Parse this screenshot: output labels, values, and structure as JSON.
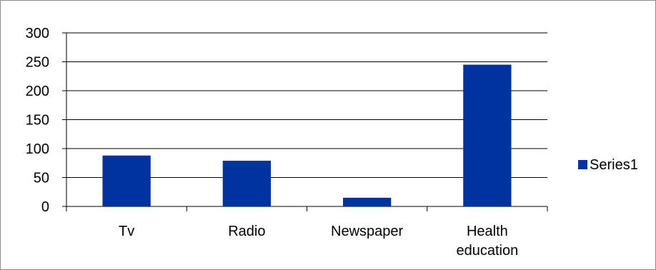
{
  "chart_data": {
    "type": "bar",
    "categories": [
      "Tv",
      "Radio",
      "Newspaper",
      "Health education"
    ],
    "category_lines": [
      [
        "Tv"
      ],
      [
        "Radio"
      ],
      [
        "Newspaper"
      ],
      [
        "Health",
        "education"
      ]
    ],
    "series": [
      {
        "name": "Series1",
        "values": [
          88,
          79,
          15,
          245
        ],
        "color": "#0033a0"
      }
    ],
    "ylim": [
      0,
      300
    ],
    "yticks": [
      0,
      50,
      100,
      150,
      200,
      250,
      300
    ],
    "grid": true,
    "legend": "right",
    "title": "",
    "xlabel": "",
    "ylabel": ""
  }
}
